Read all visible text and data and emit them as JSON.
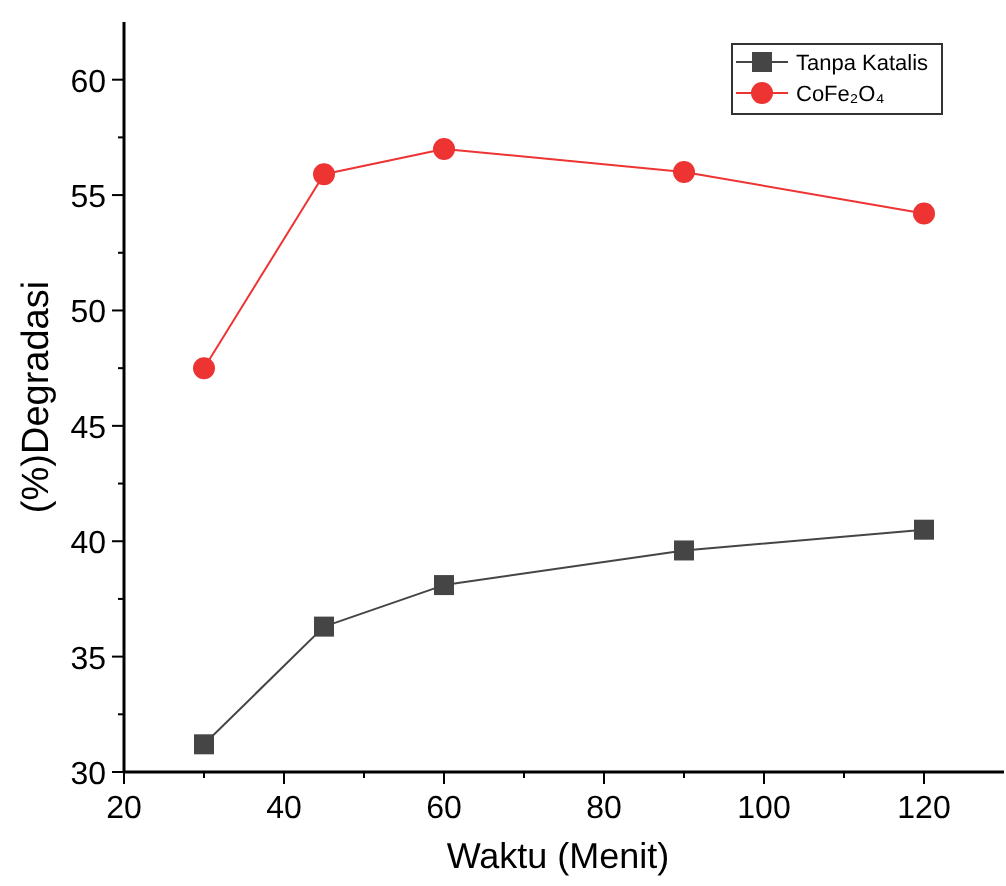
{
  "chart_data": {
    "type": "line",
    "xlabel": "Waktu (Menit)",
    "ylabel": "(%)Degradasi",
    "xlim": [
      20,
      130
    ],
    "xticks": [
      20,
      {
        "value": 30,
        "label": null
      },
      40,
      {
        "value": 50,
        "label": null
      },
      60,
      {
        "value": 70,
        "label": null
      },
      80,
      {
        "value": 90,
        "label": null
      },
      100,
      {
        "value": 110,
        "label": null
      },
      120
    ],
    "ylim": [
      30,
      62.5
    ],
    "yticks": [
      30,
      {
        "value": 32.5,
        "label": null
      },
      35,
      {
        "value": 37.5,
        "label": null
      },
      40,
      {
        "value": 42.5,
        "label": null
      },
      45,
      {
        "value": 47.5,
        "label": null
      },
      50,
      {
        "value": 52.5,
        "label": null
      },
      55,
      {
        "value": 57.5,
        "label": null
      },
      60
    ],
    "x": [
      30,
      45,
      60,
      90,
      120
    ],
    "grid": false,
    "legend": "top right",
    "series": [
      {
        "name": "Tanpa Katalis",
        "color": "#454545",
        "marker": "square",
        "values": [
          31.2,
          36.3,
          38.1,
          39.6,
          40.5
        ]
      },
      {
        "name": "CoFe₂O₄",
        "color": "#ee3333",
        "marker": "circle",
        "values": [
          47.5,
          55.9,
          57.0,
          56.0,
          54.2
        ]
      }
    ]
  }
}
